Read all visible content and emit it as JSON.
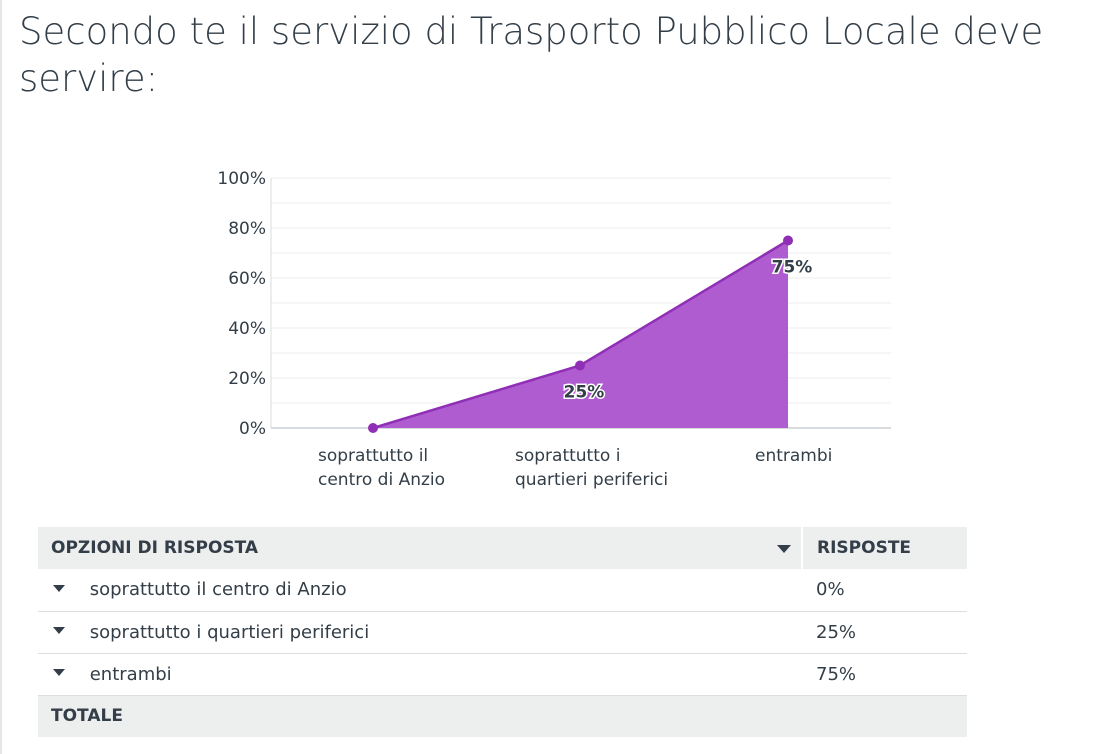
{
  "title": "Secondo te il servizio di Trasporto Pubblico Locale deve servire:",
  "colors": {
    "area_fill": "#b05cd1",
    "line": "#8f2fb5",
    "grid": "#eceeef",
    "axis": "#d9dcde",
    "text": "#333e48",
    "table_header_bg": "#edeeee"
  },
  "chart_data": {
    "type": "area",
    "categories": [
      [
        "soprattutto il",
        "centro di Anzio"
      ],
      [
        "soprattutto i",
        "quartieri periferici"
      ],
      [
        "entrambi"
      ]
    ],
    "values": [
      0,
      25,
      75
    ],
    "data_labels": [
      "",
      "25%",
      "75%"
    ],
    "yticks": [
      "0%",
      "20%",
      "40%",
      "60%",
      "80%",
      "100%"
    ],
    "ylim": [
      0,
      100
    ],
    "grid": true
  },
  "table": {
    "headers": {
      "options": "OPZIONI DI RISPOSTA",
      "responses": "RISPOSTE"
    },
    "rows": [
      {
        "label": "soprattutto il centro di Anzio",
        "value": "0%"
      },
      {
        "label": "soprattutto i quartieri periferici",
        "value": "25%"
      },
      {
        "label": "entrambi",
        "value": "75%"
      }
    ],
    "total_label": "TOTALE",
    "icons": {
      "row": "caret-down-icon",
      "sort": "sort-caret-down-icon"
    }
  }
}
